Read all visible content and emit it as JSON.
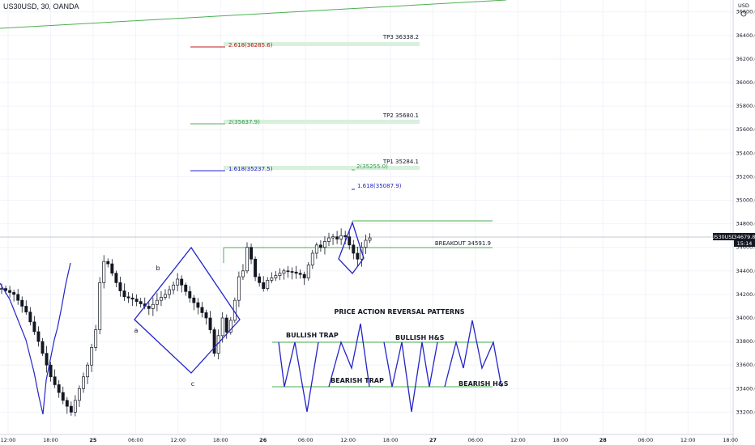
{
  "header": {
    "title": "US30USD, 30, OANDA",
    "currency": "USD"
  },
  "price_tag": {
    "symbol": "US30USD",
    "price": "34679.8",
    "countdown": "15:14"
  },
  "chart_data": {
    "type": "candlestick",
    "title": "US30USD, 30, OANDA",
    "ylabel": "USD",
    "ylim": [
      33085,
      36685
    ],
    "y_ticks": [
      33200,
      33400,
      33600,
      33800,
      34000,
      34200,
      34400,
      34600,
      34800,
      35000,
      35200,
      35400,
      35600,
      35800,
      36000,
      36200,
      36400,
      36600
    ],
    "x_tick_labels": [
      "12:00",
      "18:00",
      "25",
      "06:00",
      "12:00",
      "18:00",
      "26",
      "06:00",
      "12:00",
      "18:00",
      "27",
      "06:00",
      "12:00",
      "18:00",
      "28",
      "06:00",
      "12:00",
      "18:00"
    ],
    "last_price": 34679.8,
    "close_path": [
      [
        0,
        34250
      ],
      [
        3,
        34200
      ],
      [
        6,
        34050
      ],
      [
        9,
        33800
      ],
      [
        12,
        33500
      ],
      [
        15,
        33300
      ],
      [
        17,
        33200
      ],
      [
        19,
        33400
      ],
      [
        21,
        33600
      ],
      [
        23,
        33900
      ],
      [
        24,
        34300
      ],
      [
        25,
        34480
      ],
      [
        26,
        34460
      ],
      [
        27,
        34380
      ],
      [
        28,
        34300
      ],
      [
        29,
        34230
      ],
      [
        30,
        34180
      ],
      [
        32,
        34160
      ],
      [
        34,
        34120
      ],
      [
        36,
        34080
      ],
      [
        38,
        34150
      ],
      [
        40,
        34200
      ],
      [
        42,
        34280
      ],
      [
        43,
        34330
      ],
      [
        44,
        34280
      ],
      [
        46,
        34170
      ],
      [
        48,
        34090
      ],
      [
        50,
        34000
      ],
      [
        51,
        33900
      ],
      [
        52,
        33700
      ],
      [
        53,
        33850
      ],
      [
        54,
        34000
      ],
      [
        55,
        33880
      ],
      [
        56,
        33980
      ],
      [
        57,
        34150
      ],
      [
        58,
        34350
      ],
      [
        59,
        34400
      ],
      [
        60,
        34600
      ],
      [
        61,
        34500
      ],
      [
        62,
        34350
      ],
      [
        63,
        34300
      ],
      [
        64,
        34250
      ],
      [
        65,
        34320
      ],
      [
        67,
        34360
      ],
      [
        69,
        34400
      ],
      [
        71,
        34390
      ],
      [
        73,
        34370
      ],
      [
        74,
        34340
      ],
      [
        75,
        34450
      ],
      [
        76,
        34550
      ],
      [
        77,
        34620
      ],
      [
        78,
        34600
      ],
      [
        79,
        34650
      ],
      [
        80,
        34680
      ],
      [
        81,
        34690
      ],
      [
        82,
        34670
      ],
      [
        83,
        34700
      ],
      [
        84,
        34690
      ],
      [
        85,
        34620
      ],
      [
        86,
        34550
      ],
      [
        87,
        34500
      ],
      [
        88,
        34600
      ],
      [
        89,
        34660
      ],
      [
        90,
        34680
      ]
    ],
    "level_labels": {
      "fib_2618": "2.618(36285.6)",
      "tp3": "TP3 36338.2",
      "fib_2": "2(35637.9)",
      "tp2": "TP2 35680.1",
      "fib_1618": "1.618(35237.5)",
      "fib_2b": "2(35255.0)",
      "tp1": "TP1 35284.1",
      "fib_1618b": "1.618(35087.9)",
      "breakout": "BREAKOUT 34591.9"
    },
    "annotations": {
      "point_a": "a",
      "point_b": "b",
      "point_c": "c",
      "patterns_title": "PRICE ACTION REVERSAL PATTERNS",
      "bullish_trap": "BULLISH TRAP",
      "bearish_trap": "BEARISH TRAP",
      "bullish_hs": "BULLISH H&S",
      "bearish_hs": "BEARISH H&S"
    },
    "colors": {
      "line": "#2424c8",
      "green": "#4caf50",
      "red": "#b71c1c",
      "band": "#d9f0dc",
      "grid": "#f0f3fa"
    }
  }
}
